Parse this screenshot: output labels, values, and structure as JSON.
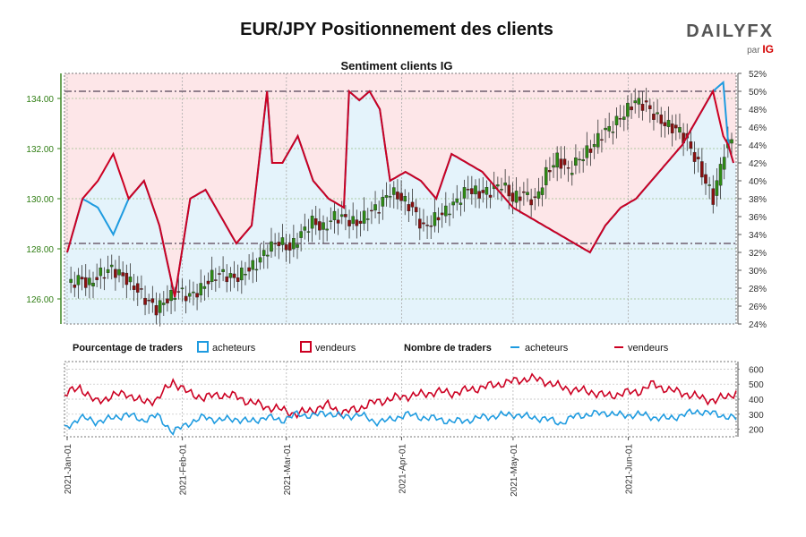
{
  "title": "EUR/JPY Positionnement des clients",
  "brand": {
    "name": "DAILYFX",
    "sub": "par",
    "sub_brand": "IG"
  },
  "colors": {
    "price_axis": "#2e7d12",
    "up_candle": "#2e8b14",
    "down_candle": "#8b1010",
    "buyers": "#1e9be0",
    "sellers": "#cc0022",
    "top_zone": "#fde6e8",
    "bottom_zone": "#e4f3fb",
    "frame": "#777777",
    "grid": "#9bbf8a"
  },
  "chart_data": [
    {
      "type": "candlestick+line",
      "subtitle": "Sentiment clients IG",
      "left_axis": {
        "ticks": [
          "126.00",
          "128.00",
          "130.00",
          "132.00",
          "134.00"
        ],
        "range": [
          125,
          135
        ]
      },
      "right_axis": {
        "ticks": [
          "24%",
          "26%",
          "28%",
          "30%",
          "32%",
          "34%",
          "36%",
          "38%",
          "40%",
          "42%",
          "44%",
          "46%",
          "48%",
          "50%",
          "52%"
        ],
        "range": [
          24,
          52
        ]
      },
      "reference_levels_pct": [
        50.0,
        33.0
      ],
      "price_close_anchors": [
        [
          0,
          126.5
        ],
        [
          3,
          126.8
        ],
        [
          6,
          126.6
        ],
        [
          9,
          127.0
        ],
        [
          12,
          127.2
        ],
        [
          15,
          126.9
        ],
        [
          18,
          126.5
        ],
        [
          21,
          126.0
        ],
        [
          24,
          125.6
        ],
        [
          27,
          126.0
        ],
        [
          30,
          126.3
        ],
        [
          33,
          126.1
        ],
        [
          36,
          126.4
        ],
        [
          39,
          126.9
        ],
        [
          42,
          127.0
        ],
        [
          45,
          126.8
        ],
        [
          48,
          127.1
        ],
        [
          51,
          127.4
        ],
        [
          54,
          128.0
        ],
        [
          57,
          128.3
        ],
        [
          60,
          128.0
        ],
        [
          63,
          128.6
        ],
        [
          66,
          129.1
        ],
        [
          69,
          128.8
        ],
        [
          72,
          129.3
        ],
        [
          75,
          129.2
        ],
        [
          78,
          129.0
        ],
        [
          81,
          129.4
        ],
        [
          84,
          129.7
        ],
        [
          87,
          130.3
        ],
        [
          90,
          130.0
        ],
        [
          93,
          129.6
        ],
        [
          96,
          128.8
        ],
        [
          99,
          129.2
        ],
        [
          102,
          129.5
        ],
        [
          105,
          129.9
        ],
        [
          108,
          130.4
        ],
        [
          111,
          130.2
        ],
        [
          114,
          130.3
        ],
        [
          117,
          130.6
        ],
        [
          120,
          130.0
        ],
        [
          123,
          130.2
        ],
        [
          126,
          129.9
        ],
        [
          129,
          131.0
        ],
        [
          132,
          131.6
        ],
        [
          135,
          131.1
        ],
        [
          138,
          131.6
        ],
        [
          141,
          132.0
        ],
        [
          144,
          132.6
        ],
        [
          147,
          132.9
        ],
        [
          150,
          133.4
        ],
        [
          153,
          133.9
        ],
        [
          156,
          133.7
        ],
        [
          159,
          133.2
        ],
        [
          162,
          132.9
        ],
        [
          165,
          132.7
        ],
        [
          168,
          132.0
        ],
        [
          171,
          131.0
        ],
        [
          174,
          130.0
        ],
        [
          177,
          131.9
        ],
        [
          179,
          132.4
        ]
      ],
      "buyers_pct_anchors": [
        [
          0,
          32
        ],
        [
          6,
          38
        ],
        [
          12,
          37
        ],
        [
          18,
          34
        ],
        [
          24,
          38
        ],
        [
          30,
          40
        ],
        [
          36,
          35
        ],
        [
          42,
          27
        ],
        [
          48,
          38
        ],
        [
          54,
          39
        ],
        [
          60,
          36
        ],
        [
          66,
          33
        ],
        [
          72,
          35
        ],
        [
          78,
          50
        ],
        [
          80,
          42
        ],
        [
          84,
          42
        ],
        [
          90,
          45
        ],
        [
          96,
          40
        ],
        [
          102,
          38
        ],
        [
          108,
          37
        ],
        [
          110,
          50
        ],
        [
          114,
          49
        ],
        [
          118,
          50
        ],
        [
          122,
          48
        ],
        [
          126,
          40
        ],
        [
          132,
          41
        ],
        [
          138,
          40
        ],
        [
          144,
          38
        ],
        [
          150,
          43
        ],
        [
          156,
          42
        ],
        [
          162,
          41
        ],
        [
          168,
          39
        ],
        [
          174,
          37
        ],
        [
          180,
          36
        ],
        [
          186,
          35
        ],
        [
          192,
          34
        ],
        [
          198,
          33
        ],
        [
          204,
          32
        ],
        [
          210,
          35
        ],
        [
          216,
          37
        ],
        [
          222,
          38
        ],
        [
          228,
          40
        ],
        [
          234,
          42
        ],
        [
          240,
          44
        ],
        [
          246,
          47
        ],
        [
          252,
          50
        ],
        [
          256,
          51
        ],
        [
          258,
          44
        ],
        [
          260,
          42
        ]
      ],
      "sellers_pct_anchors": [
        [
          0,
          32
        ],
        [
          6,
          38
        ],
        [
          12,
          40
        ],
        [
          18,
          43
        ],
        [
          24,
          38
        ],
        [
          30,
          40
        ],
        [
          36,
          35
        ],
        [
          42,
          27
        ],
        [
          48,
          38
        ],
        [
          54,
          39
        ],
        [
          60,
          36
        ],
        [
          66,
          33
        ],
        [
          72,
          35
        ],
        [
          78,
          50
        ],
        [
          80,
          42
        ],
        [
          84,
          42
        ],
        [
          90,
          45
        ],
        [
          96,
          40
        ],
        [
          102,
          38
        ],
        [
          108,
          37
        ],
        [
          110,
          50
        ],
        [
          114,
          49
        ],
        [
          118,
          50
        ],
        [
          122,
          48
        ],
        [
          126,
          40
        ],
        [
          132,
          41
        ],
        [
          138,
          40
        ],
        [
          144,
          38
        ],
        [
          150,
          43
        ],
        [
          156,
          42
        ],
        [
          162,
          41
        ],
        [
          168,
          39
        ],
        [
          174,
          37
        ],
        [
          180,
          36
        ],
        [
          186,
          35
        ],
        [
          192,
          34
        ],
        [
          198,
          33
        ],
        [
          204,
          32
        ],
        [
          210,
          35
        ],
        [
          216,
          37
        ],
        [
          222,
          38
        ],
        [
          228,
          40
        ],
        [
          234,
          42
        ],
        [
          240,
          44
        ],
        [
          246,
          47
        ],
        [
          252,
          50
        ],
        [
          256,
          45
        ],
        [
          258,
          44
        ],
        [
          260,
          42
        ]
      ]
    },
    {
      "type": "line",
      "legend": {
        "pct_label": "Pourcentage de traders",
        "count_label": "Nombre de traders",
        "buyers": "acheteurs",
        "sellers": "vendeurs"
      },
      "y_axis": {
        "ticks": [
          "200",
          "300",
          "400",
          "500",
          "600"
        ],
        "range": [
          150,
          650
        ]
      },
      "buyers_anchors": [
        [
          0,
          200
        ],
        [
          6,
          280
        ],
        [
          12,
          250
        ],
        [
          18,
          270
        ],
        [
          24,
          300
        ],
        [
          30,
          260
        ],
        [
          36,
          290
        ],
        [
          42,
          180
        ],
        [
          48,
          240
        ],
        [
          54,
          280
        ],
        [
          60,
          260
        ],
        [
          66,
          270
        ],
        [
          72,
          250
        ],
        [
          78,
          280
        ],
        [
          84,
          260
        ],
        [
          90,
          300
        ],
        [
          96,
          290
        ],
        [
          102,
          310
        ],
        [
          108,
          280
        ],
        [
          114,
          300
        ],
        [
          120,
          250
        ],
        [
          126,
          260
        ],
        [
          132,
          300
        ],
        [
          138,
          280
        ],
        [
          144,
          270
        ],
        [
          150,
          250
        ],
        [
          156,
          260
        ],
        [
          162,
          280
        ],
        [
          168,
          290
        ],
        [
          174,
          300
        ],
        [
          180,
          280
        ],
        [
          186,
          270
        ],
        [
          192,
          240
        ],
        [
          198,
          290
        ],
        [
          204,
          300
        ],
        [
          210,
          310
        ],
        [
          216,
          290
        ],
        [
          222,
          300
        ],
        [
          228,
          280
        ],
        [
          234,
          270
        ],
        [
          240,
          300
        ],
        [
          246,
          320
        ],
        [
          252,
          300
        ],
        [
          258,
          280
        ],
        [
          260,
          270
        ]
      ],
      "sellers_anchors": [
        [
          0,
          430
        ],
        [
          6,
          480
        ],
        [
          12,
          380
        ],
        [
          18,
          420
        ],
        [
          24,
          440
        ],
        [
          30,
          380
        ],
        [
          36,
          400
        ],
        [
          42,
          520
        ],
        [
          48,
          440
        ],
        [
          54,
          410
        ],
        [
          60,
          430
        ],
        [
          66,
          420
        ],
        [
          72,
          380
        ],
        [
          78,
          350
        ],
        [
          84,
          330
        ],
        [
          90,
          300
        ],
        [
          96,
          330
        ],
        [
          102,
          360
        ],
        [
          108,
          310
        ],
        [
          114,
          340
        ],
        [
          120,
          380
        ],
        [
          126,
          400
        ],
        [
          132,
          420
        ],
        [
          138,
          430
        ],
        [
          144,
          450
        ],
        [
          150,
          440
        ],
        [
          156,
          460
        ],
        [
          162,
          480
        ],
        [
          168,
          500
        ],
        [
          174,
          520
        ],
        [
          180,
          540
        ],
        [
          186,
          520
        ],
        [
          192,
          480
        ],
        [
          198,
          460
        ],
        [
          204,
          450
        ],
        [
          210,
          420
        ],
        [
          216,
          440
        ],
        [
          222,
          450
        ],
        [
          228,
          500
        ],
        [
          234,
          460
        ],
        [
          240,
          440
        ],
        [
          246,
          410
        ],
        [
          252,
          390
        ],
        [
          258,
          430
        ],
        [
          260,
          450
        ]
      ]
    }
  ],
  "x_dates": [
    "2021-Jan-01",
    "2021-Feb-01",
    "2021-Mar-01",
    "2021-Apr-01",
    "2021-May-01",
    "2021-Jun-01"
  ],
  "x_date_index": [
    0,
    31,
    59,
    90,
    120,
    151
  ]
}
